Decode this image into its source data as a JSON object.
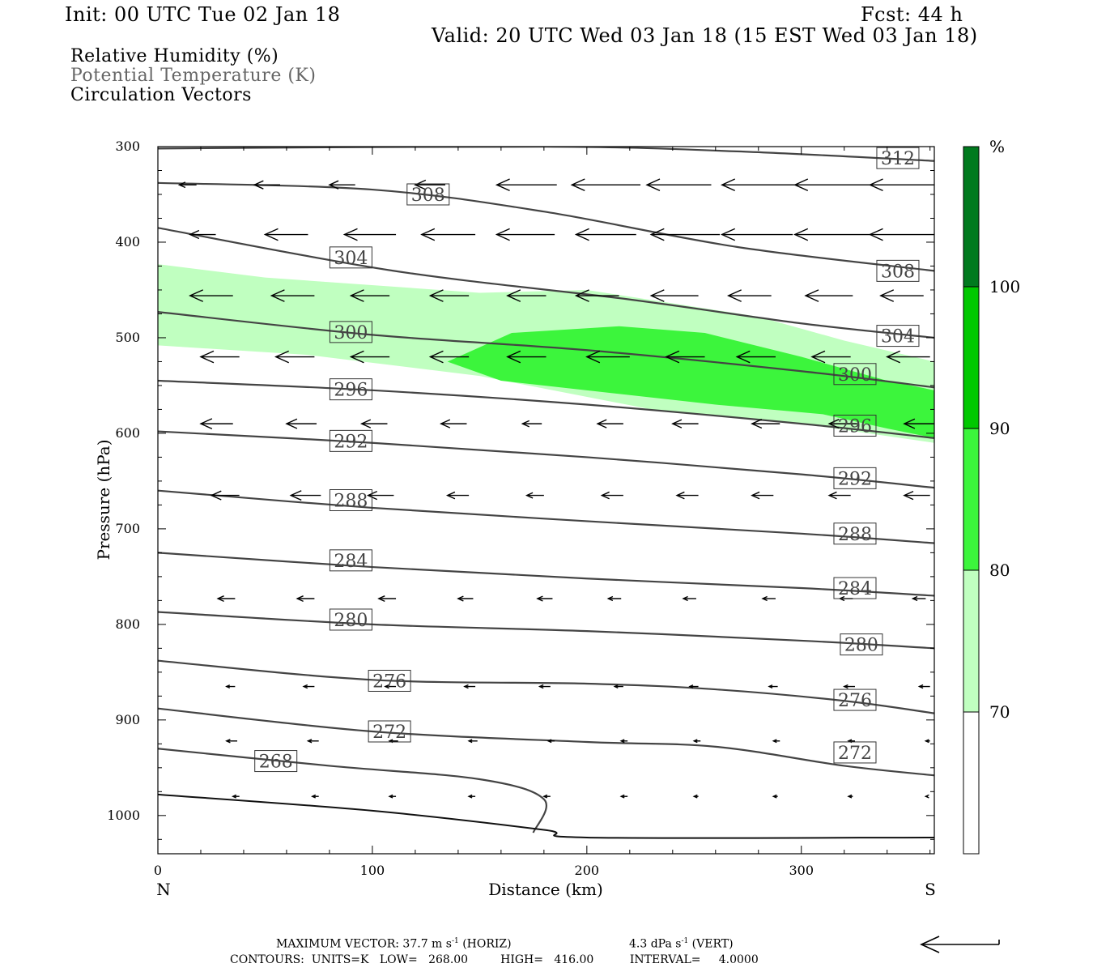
{
  "header": {
    "init": "Init: 00 UTC Tue 02 Jan 18",
    "fcst": "Fcst:   44 h",
    "valid": "Valid: 20 UTC Wed 03 Jan 18 (15 EST Wed 03 Jan 18)"
  },
  "legend": {
    "rh": "Relative Humidity (%)",
    "theta": "Potential Temperature (K)",
    "vectors": "Circulation Vectors"
  },
  "colors": {
    "rh_70_80": "#c0ffc0",
    "rh_80_90": "#3cf53c",
    "rh_90_100": "#00c800",
    "rh_100": "#007a1e",
    "theta_line": "#444444",
    "theta_label_text": "#444444",
    "legend_theta_text": "#555555"
  },
  "chart_data": {
    "type": "cross-section",
    "xlabel": "Distance (km)",
    "ylabel": "Pressure (hPa)",
    "xlim": [
      0,
      362
    ],
    "ylim": [
      1040,
      300
    ],
    "x_ticks": [
      "0",
      "100",
      "200",
      "300"
    ],
    "y_ticks": [
      "300",
      "400",
      "500",
      "600",
      "700",
      "800",
      "900",
      "1000"
    ],
    "x_end_labels": {
      "left": "N",
      "right": "S"
    },
    "colorbar": {
      "unit": "%",
      "levels": [
        "70",
        "80",
        "90",
        "100"
      ]
    },
    "rh_regions": [
      {
        "range": "70-80",
        "pressure_top_hPa": [
          [
            0,
            423
          ],
          [
            50,
            437
          ],
          [
            150,
            453
          ],
          [
            200,
            450
          ],
          [
            280,
            478
          ],
          [
            320,
            503
          ],
          [
            362,
            525
          ],
          [
            362,
            610
          ],
          [
            300,
            590
          ],
          [
            230,
            575
          ],
          [
            150,
            540
          ],
          [
            70,
            518
          ],
          [
            0,
            508
          ]
        ]
      },
      {
        "range": "80-90",
        "pressure_top_hPa": [
          [
            135,
            525
          ],
          [
            165,
            495
          ],
          [
            215,
            488
          ],
          [
            255,
            495
          ],
          [
            300,
            520
          ],
          [
            340,
            545
          ],
          [
            362,
            555
          ],
          [
            362,
            605
          ],
          [
            340,
            595
          ],
          [
            310,
            580
          ],
          [
            260,
            570
          ],
          [
            220,
            560
          ],
          [
            160,
            545
          ]
        ]
      }
    ],
    "theta_contours": [
      {
        "value": "312",
        "points": [
          [
            0,
            302
          ],
          [
            180,
            300
          ],
          [
            270,
            305
          ],
          [
            362,
            315
          ]
        ]
      },
      {
        "value": "308",
        "points": [
          [
            0,
            338
          ],
          [
            100,
            345
          ],
          [
            180,
            368
          ],
          [
            270,
            405
          ],
          [
            362,
            430
          ]
        ]
      },
      {
        "value": "304",
        "points": [
          [
            0,
            385
          ],
          [
            110,
            430
          ],
          [
            220,
            460
          ],
          [
            300,
            485
          ],
          [
            362,
            500
          ]
        ]
      },
      {
        "value": "300",
        "points": [
          [
            0,
            473
          ],
          [
            100,
            497
          ],
          [
            200,
            513
          ],
          [
            300,
            535
          ],
          [
            362,
            552
          ]
        ]
      },
      {
        "value": "296",
        "points": [
          [
            0,
            545
          ],
          [
            100,
            555
          ],
          [
            200,
            570
          ],
          [
            300,
            590
          ],
          [
            362,
            605
          ]
        ]
      },
      {
        "value": "292",
        "points": [
          [
            0,
            598
          ],
          [
            100,
            610
          ],
          [
            200,
            625
          ],
          [
            300,
            643
          ],
          [
            362,
            657
          ]
        ]
      },
      {
        "value": "288",
        "points": [
          [
            0,
            660
          ],
          [
            100,
            678
          ],
          [
            200,
            692
          ],
          [
            300,
            705
          ],
          [
            362,
            715
          ]
        ]
      },
      {
        "value": "284",
        "points": [
          [
            0,
            725
          ],
          [
            100,
            740
          ],
          [
            200,
            752
          ],
          [
            300,
            762
          ],
          [
            362,
            770
          ]
        ]
      },
      {
        "value": "280",
        "points": [
          [
            0,
            787
          ],
          [
            100,
            800
          ],
          [
            200,
            807
          ],
          [
            300,
            817
          ],
          [
            362,
            825
          ]
        ]
      },
      {
        "value": "276",
        "points": [
          [
            0,
            838
          ],
          [
            100,
            858
          ],
          [
            200,
            862
          ],
          [
            260,
            868
          ],
          [
            320,
            880
          ],
          [
            362,
            893
          ]
        ]
      },
      {
        "value": "272",
        "points": [
          [
            0,
            888
          ],
          [
            100,
            912
          ],
          [
            200,
            923
          ],
          [
            260,
            928
          ],
          [
            320,
            948
          ],
          [
            362,
            958
          ]
        ]
      },
      {
        "value": "268",
        "points": [
          [
            0,
            930
          ],
          [
            80,
            948
          ],
          [
            150,
            962
          ],
          [
            180,
            983
          ],
          [
            175,
            1018
          ]
        ]
      }
    ],
    "surface": {
      "points": [
        [
          0,
          978
        ],
        [
          100,
          995
        ],
        [
          180,
          1015
        ],
        [
          200,
          1023
        ],
        [
          362,
          1023
        ]
      ]
    },
    "contour_labels": [
      {
        "text": "312",
        "x": 345,
        "p": 312
      },
      {
        "text": "308",
        "x": 126,
        "p": 350
      },
      {
        "text": "308",
        "x": 345,
        "p": 430
      },
      {
        "text": "304",
        "x": 90,
        "p": 416
      },
      {
        "text": "304",
        "x": 345,
        "p": 498
      },
      {
        "text": "300",
        "x": 90,
        "p": 494
      },
      {
        "text": "300",
        "x": 325,
        "p": 538
      },
      {
        "text": "296",
        "x": 90,
        "p": 554
      },
      {
        "text": "296",
        "x": 325,
        "p": 592
      },
      {
        "text": "292",
        "x": 90,
        "p": 608
      },
      {
        "text": "292",
        "x": 325,
        "p": 647
      },
      {
        "text": "288",
        "x": 90,
        "p": 670
      },
      {
        "text": "288",
        "x": 325,
        "p": 705
      },
      {
        "text": "284",
        "x": 90,
        "p": 733
      },
      {
        "text": "284",
        "x": 325,
        "p": 762
      },
      {
        "text": "280",
        "x": 90,
        "p": 795
      },
      {
        "text": "280",
        "x": 328,
        "p": 821
      },
      {
        "text": "276",
        "x": 108,
        "p": 859
      },
      {
        "text": "276",
        "x": 325,
        "p": 879
      },
      {
        "text": "272",
        "x": 108,
        "p": 912
      },
      {
        "text": "272",
        "x": 325,
        "p": 934
      },
      {
        "text": "268",
        "x": 55,
        "p": 943
      }
    ],
    "vector_rows": [
      {
        "p": 340,
        "x": [
          10,
          45,
          80,
          120,
          158,
          193,
          228,
          263,
          297,
          332
        ],
        "len_km": [
          8,
          12,
          12,
          14,
          28,
          32,
          30,
          35,
          35,
          36
        ]
      },
      {
        "p": 392,
        "x": [
          15,
          50,
          87,
          123,
          158,
          195,
          230,
          263,
          297,
          332
        ],
        "len_km": [
          12,
          20,
          24,
          25,
          27,
          28,
          32,
          33,
          35,
          35
        ]
      },
      {
        "p": 456,
        "x": [
          15,
          53,
          90,
          127,
          163,
          195,
          230,
          266,
          302,
          337
        ],
        "len_km": [
          20,
          20,
          18,
          18,
          18,
          20,
          22,
          20,
          22,
          20
        ]
      },
      {
        "p": 520,
        "x": [
          20,
          55,
          90,
          127,
          163,
          200,
          237,
          270,
          305,
          340
        ],
        "len_km": [
          18,
          18,
          18,
          18,
          18,
          20,
          18,
          18,
          18,
          20
        ]
      },
      {
        "p": 590,
        "x": [
          20,
          60,
          95,
          132,
          170,
          205,
          240,
          277,
          313,
          348
        ],
        "len_km": [
          15,
          14,
          12,
          12,
          9,
          12,
          12,
          13,
          13,
          14
        ]
      },
      {
        "p": 665,
        "x": [
          25,
          62,
          98,
          135,
          172,
          207,
          242,
          277,
          313,
          348
        ],
        "len_km": [
          13,
          14,
          12,
          10,
          8,
          10,
          10,
          10,
          10,
          12
        ]
      },
      {
        "p": 773,
        "x": [
          28,
          65,
          103,
          140,
          177,
          210,
          245,
          282,
          318,
          352
        ],
        "len_km": [
          8,
          8,
          8,
          7,
          7,
          6,
          6,
          6,
          6,
          6
        ]
      },
      {
        "p": 865,
        "x": [
          32,
          68,
          106,
          143,
          178,
          213,
          248,
          285,
          320,
          355
        ],
        "len_km": [
          4,
          5,
          5,
          5,
          5,
          4,
          4,
          4,
          5,
          5
        ]
      },
      {
        "p": 922,
        "x": [
          32,
          70,
          108,
          145,
          182,
          216,
          250,
          287,
          322,
          358
        ],
        "len_km": [
          5,
          5,
          4,
          4,
          3,
          3,
          3,
          3,
          3,
          2
        ]
      },
      {
        "p": 980,
        "x": [
          35,
          72,
          108,
          145,
          180,
          216,
          250,
          287,
          322,
          358
        ],
        "len_km": [
          3,
          3,
          3,
          3,
          3,
          3,
          2,
          2,
          2,
          1
        ]
      }
    ]
  },
  "footer": {
    "max_vector": "MAXIMUM VECTOR:  37.7 m s",
    "max_vector_unit_sup": "-1",
    "horiz": " (HORIZ)",
    "vert_value": "4.3 dPa s",
    "vert_unit_sup": "-1",
    "vert": " (VERT)",
    "contours": "CONTOURS:  UNITS=K   LOW=   268.00         HIGH=   416.00          INTERVAL=     4.0000"
  }
}
